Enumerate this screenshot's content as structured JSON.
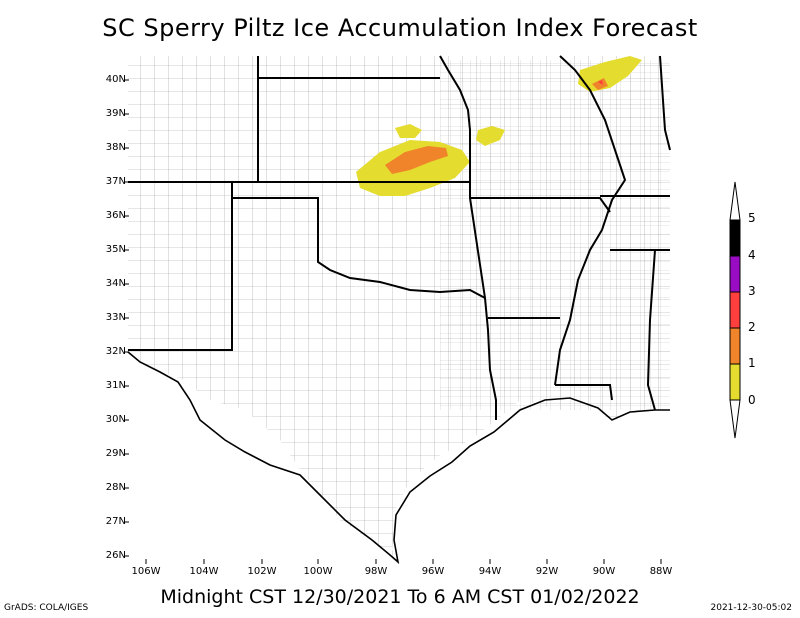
{
  "title": "SC Sperry Piltz Ice Accumulation Index Forecast",
  "subtitle": "Midnight CST 12/30/2021 To 6 AM CST 01/02/2022",
  "credit": "GrADS: COLA/IGES",
  "timestamp": "2021-12-30-05:02",
  "lat_labels": [
    "40N",
    "39N",
    "38N",
    "37N",
    "36N",
    "35N",
    "34N",
    "33N",
    "32N",
    "31N",
    "30N",
    "29N",
    "28N",
    "27N",
    "26N"
  ],
  "lon_labels": [
    "106W",
    "104W",
    "102W",
    "100W",
    "98W",
    "96W",
    "94W",
    "92W",
    "90W",
    "88W"
  ],
  "legend": {
    "labels": [
      "5",
      "4",
      "3",
      "2",
      "1",
      "0"
    ],
    "colors": [
      "#000000",
      "#9a0bc4",
      "#ff3e3e",
      "#f0842a",
      "#e4dc2e",
      "#ffffff"
    ]
  }
}
